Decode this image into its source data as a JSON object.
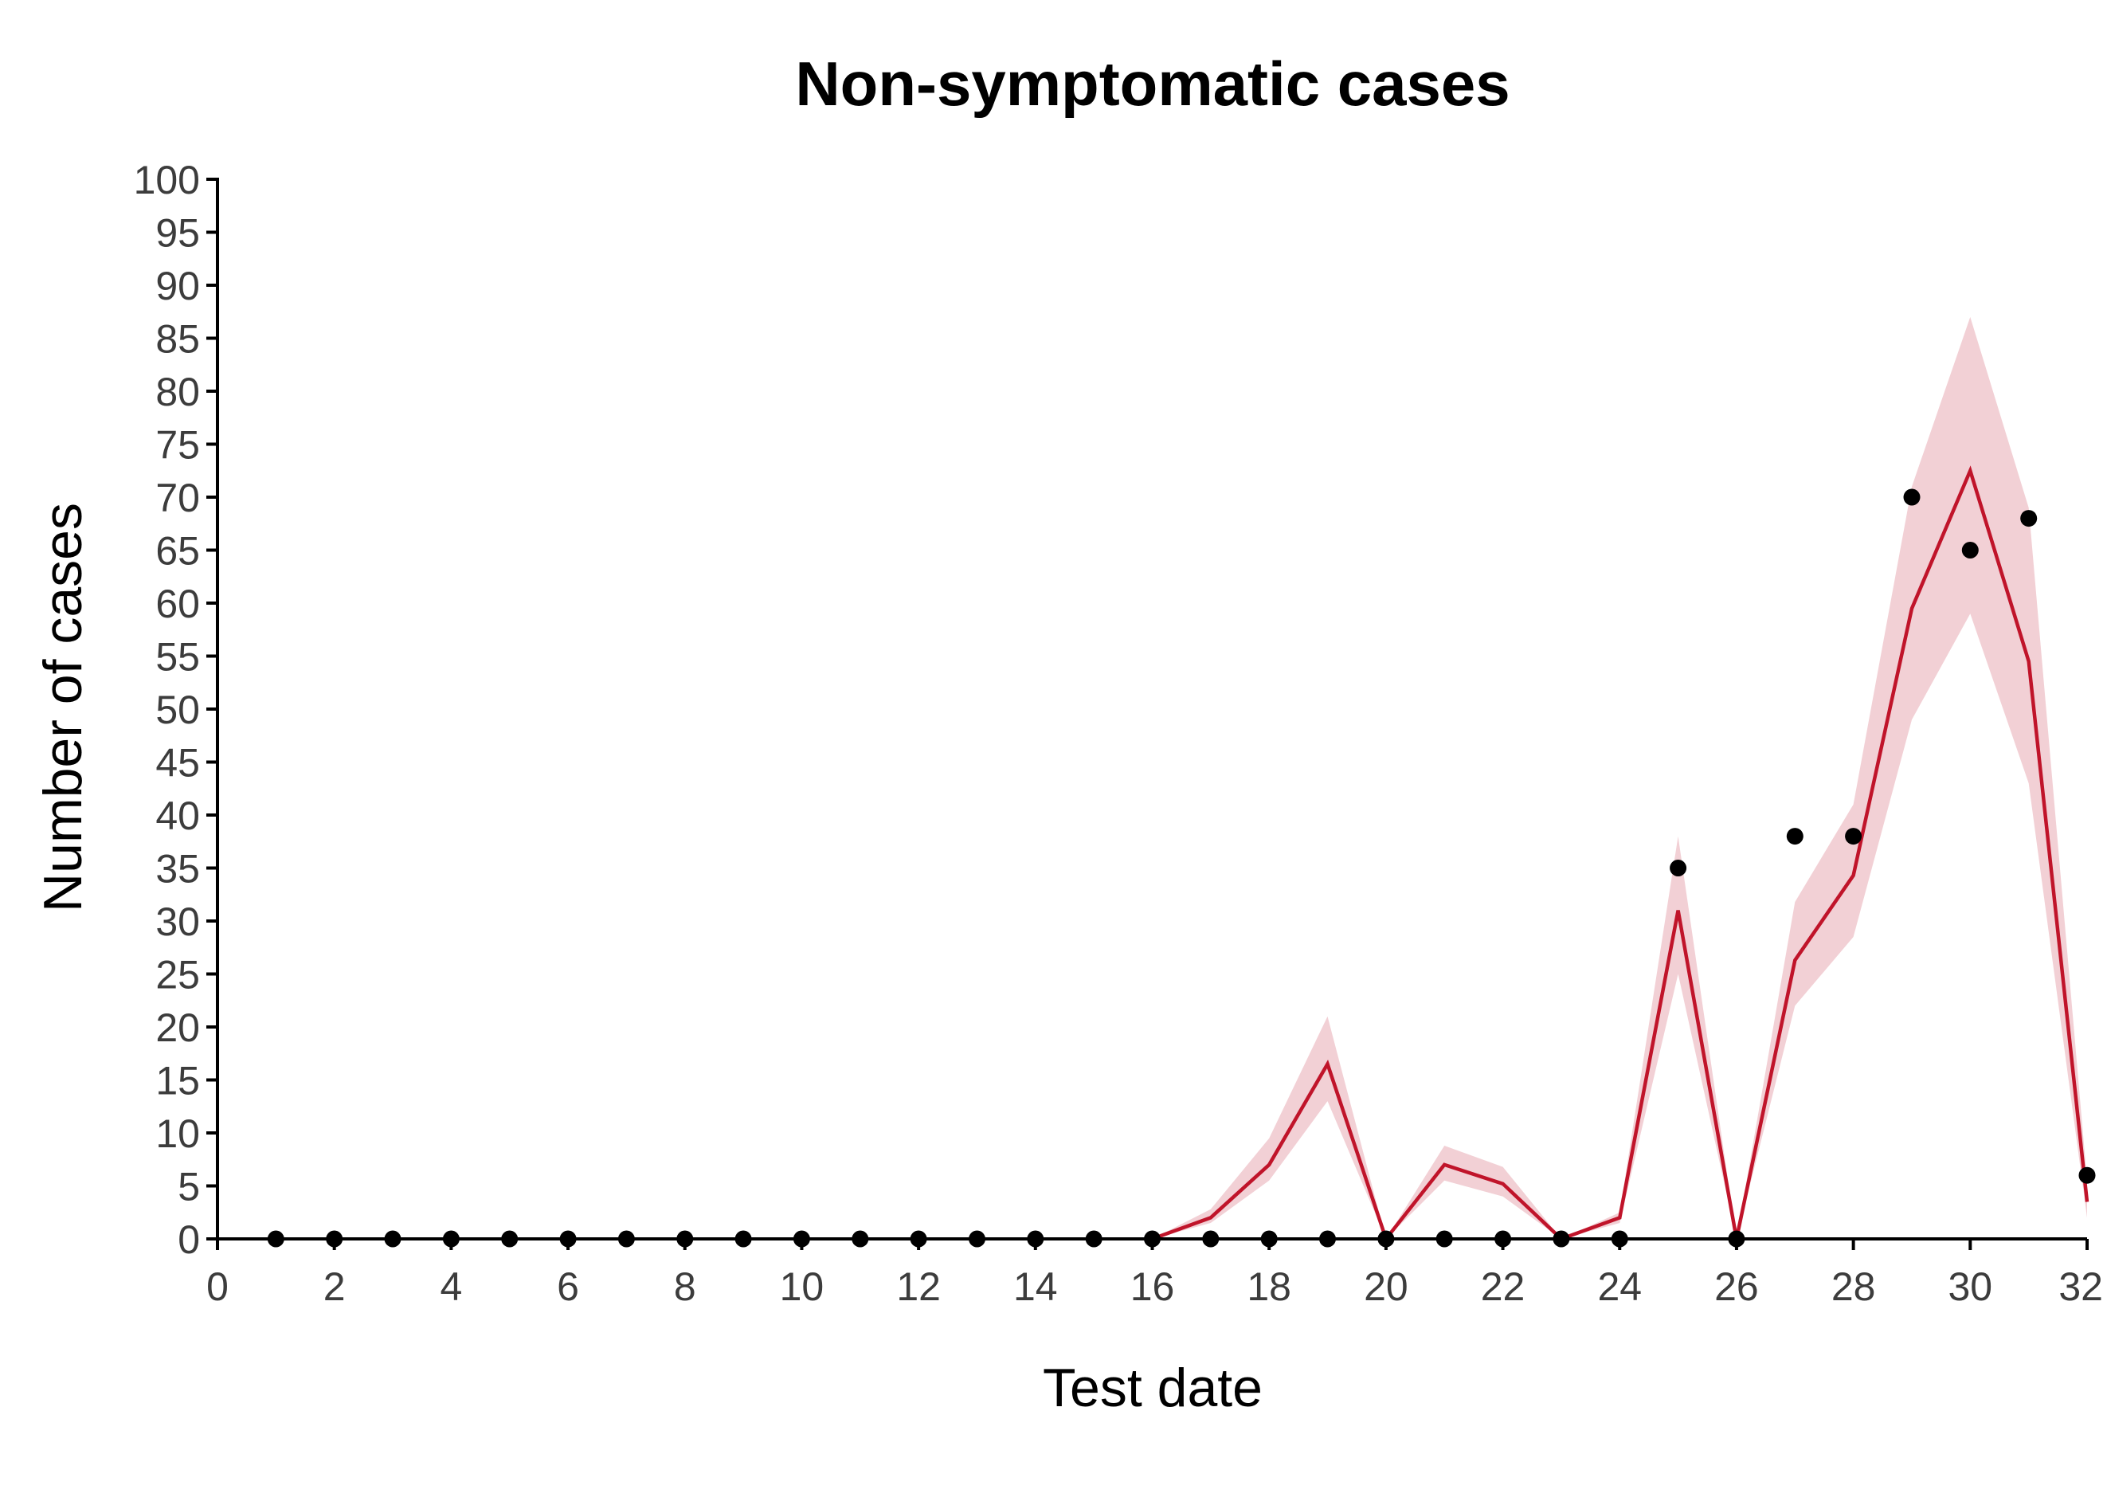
{
  "chart_data": {
    "type": "line",
    "title": "Non-symptomatic cases",
    "xlabel": "Test date",
    "ylabel": "Number of cases",
    "xlim": [
      0,
      32
    ],
    "ylim": [
      0,
      100
    ],
    "xticks": [
      0,
      2,
      4,
      6,
      8,
      10,
      12,
      14,
      16,
      18,
      20,
      22,
      24,
      26,
      28,
      30,
      32
    ],
    "yticks": [
      0,
      5,
      10,
      15,
      20,
      25,
      30,
      35,
      40,
      45,
      50,
      55,
      60,
      65,
      70,
      75,
      80,
      85,
      90,
      95,
      100
    ],
    "grid": false,
    "legend": "none",
    "colors": {
      "line": "#c0142a",
      "band": "#f2d0d5",
      "points": "#000000",
      "axis": "#000000"
    },
    "series": [
      {
        "kind": "observed-points",
        "x": [
          1,
          2,
          3,
          4,
          5,
          6,
          7,
          8,
          9,
          10,
          11,
          12,
          13,
          14,
          15,
          16,
          17,
          18,
          19,
          20,
          21,
          22,
          23,
          24,
          25,
          26,
          27,
          28,
          29,
          30,
          31,
          32
        ],
        "values": [
          0,
          0,
          0,
          0,
          0,
          0,
          0,
          0,
          0,
          0,
          0,
          0,
          0,
          0,
          0,
          0,
          0,
          0,
          0,
          0,
          0,
          0,
          0,
          0,
          35,
          0,
          38,
          38,
          70,
          65,
          68,
          6
        ]
      },
      {
        "kind": "fitted-line",
        "x": [
          16,
          17,
          18,
          19,
          20,
          21,
          22,
          23,
          24,
          25,
          26,
          27,
          28,
          29,
          30,
          31,
          32
        ],
        "values": [
          0,
          2,
          7,
          16.5,
          0,
          7,
          5.2,
          0,
          2,
          31,
          0,
          26.3,
          34.3,
          59.5,
          72.5,
          54.5,
          3.5
        ]
      },
      {
        "kind": "interval-band",
        "x": [
          16,
          17,
          18,
          19,
          20,
          21,
          22,
          23,
          24,
          25,
          26,
          27,
          28,
          29,
          30,
          31,
          32
        ],
        "lower": [
          0,
          1.5,
          5.5,
          13,
          0,
          5.5,
          4,
          0,
          1.5,
          25,
          0,
          22,
          28.5,
          49,
          59,
          43,
          2
        ],
        "upper": [
          0,
          2.8,
          9.5,
          21,
          0,
          8.8,
          6.8,
          0,
          2.5,
          38,
          0,
          31.8,
          41,
          71,
          87,
          69,
          5.5
        ]
      }
    ]
  }
}
